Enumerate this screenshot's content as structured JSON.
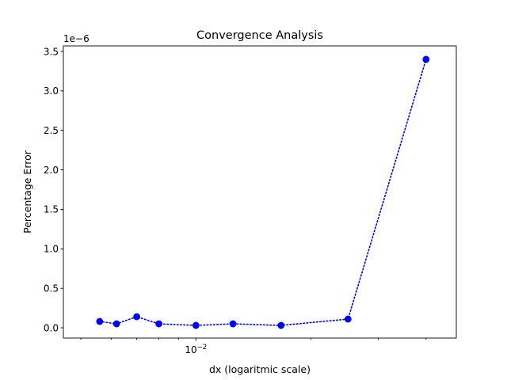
{
  "chart_data": {
    "type": "line",
    "title": "Convergence Analysis",
    "xlabel": "dx (logaritmic scale)",
    "ylabel": "Percentage Error",
    "xscale": "log",
    "yscale": "linear",
    "y_offset_label": "1e−6",
    "y_multiplier": 1e-06,
    "xlim": [
      0.0045,
      0.048
    ],
    "ylim": [
      -0.13,
      3.57
    ],
    "x_major_ticks": [
      {
        "value": 0.01,
        "base": "10",
        "exp": "−2"
      }
    ],
    "x_minor_ticks": [
      0.005,
      0.006,
      0.007,
      0.008,
      0.009,
      0.02,
      0.03,
      0.04
    ],
    "y_ticks": [
      {
        "value": 0.0,
        "label": "0.0"
      },
      {
        "value": 0.5,
        "label": "0.5"
      },
      {
        "value": 1.0,
        "label": "1.0"
      },
      {
        "value": 1.5,
        "label": "1.5"
      },
      {
        "value": 2.0,
        "label": "2.0"
      },
      {
        "value": 2.5,
        "label": "2.5"
      },
      {
        "value": 3.0,
        "label": "3.0"
      },
      {
        "value": 3.5,
        "label": "3.5"
      }
    ],
    "grid": false,
    "legend": "none",
    "series": [
      {
        "color": "#0000ff",
        "linestyle": "dotted",
        "marker": "circle",
        "x": [
          0.0056,
          0.0062,
          0.007,
          0.008,
          0.01,
          0.0125,
          0.0167,
          0.025,
          0.04
        ],
        "y": [
          0.08,
          0.05,
          0.14,
          0.05,
          0.03,
          0.05,
          0.03,
          0.11,
          3.4
        ]
      }
    ]
  }
}
